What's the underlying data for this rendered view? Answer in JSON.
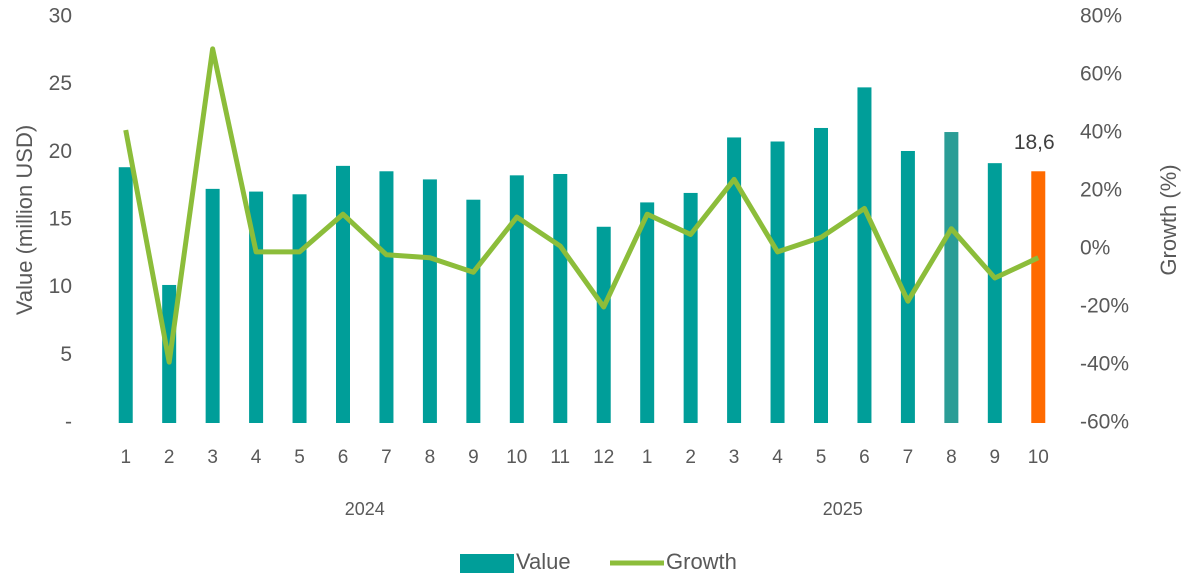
{
  "chart_data": {
    "type": "bar_line",
    "y_label": "Value (million USD)",
    "y2_label": "Growth (%)",
    "categories": [
      "1",
      "2",
      "3",
      "4",
      "5",
      "6",
      "7",
      "8",
      "9",
      "10",
      "11",
      "12",
      "1",
      "2",
      "3",
      "4",
      "5",
      "6",
      "7",
      "8",
      "9",
      "10"
    ],
    "years": [
      "2024",
      null,
      null,
      null,
      null,
      null,
      null,
      null,
      null,
      null,
      null,
      null,
      "2025",
      null,
      null,
      null,
      null,
      null,
      null,
      null,
      null,
      null
    ],
    "series": [
      {
        "name": "Value",
        "type": "bar",
        "color": "#009e99",
        "colors": [
          "#009e99",
          "#009e99",
          "#009e99",
          "#009e99",
          "#009e99",
          "#009e99",
          "#009e99",
          "#009e99",
          "#009e99",
          "#009e99",
          "#009e99",
          "#009e99",
          "#009e99",
          "#009e99",
          "#009e99",
          "#009e99",
          "#009e99",
          "#009e99",
          "#009e99",
          "#2b9d96",
          "#009e99",
          "#ff6a00"
        ],
        "values": [
          18.9,
          10.2,
          17.3,
          17.1,
          16.9,
          19.0,
          18.6,
          18.0,
          16.5,
          18.3,
          18.4,
          14.5,
          16.3,
          17.0,
          21.1,
          20.8,
          21.8,
          24.8,
          20.1,
          21.5,
          19.2,
          18.6
        ],
        "value_labels": [
          null,
          null,
          null,
          null,
          null,
          null,
          null,
          null,
          null,
          null,
          null,
          null,
          null,
          null,
          null,
          null,
          null,
          null,
          null,
          null,
          null,
          "18,6"
        ]
      },
      {
        "name": "Growth",
        "type": "line",
        "axis": "y2",
        "color": "#8cbd3a",
        "values": [
          41,
          -39,
          69,
          -1,
          -1,
          12,
          -2,
          -3,
          -8,
          11,
          1,
          -20,
          12,
          5,
          24,
          -1,
          4,
          14,
          -18,
          7,
          -10,
          -3
        ]
      }
    ],
    "ylim": [
      0,
      30
    ],
    "yticks": [
      {
        "value": 0,
        "label": "-"
      },
      5,
      10,
      15,
      20,
      25,
      30
    ],
    "y2lim": [
      -60,
      80
    ],
    "y2ticks": [
      {
        "value": -60,
        "label": "-60%"
      },
      {
        "value": -40,
        "label": "-40%"
      },
      {
        "value": -20,
        "label": "-20%"
      },
      {
        "value": 0,
        "label": "0%"
      },
      {
        "value": 20,
        "label": "20%"
      },
      {
        "value": 40,
        "label": "40%"
      },
      {
        "value": 60,
        "label": "60%"
      },
      {
        "value": 80,
        "label": "80%"
      }
    ],
    "legend": "bottom"
  }
}
